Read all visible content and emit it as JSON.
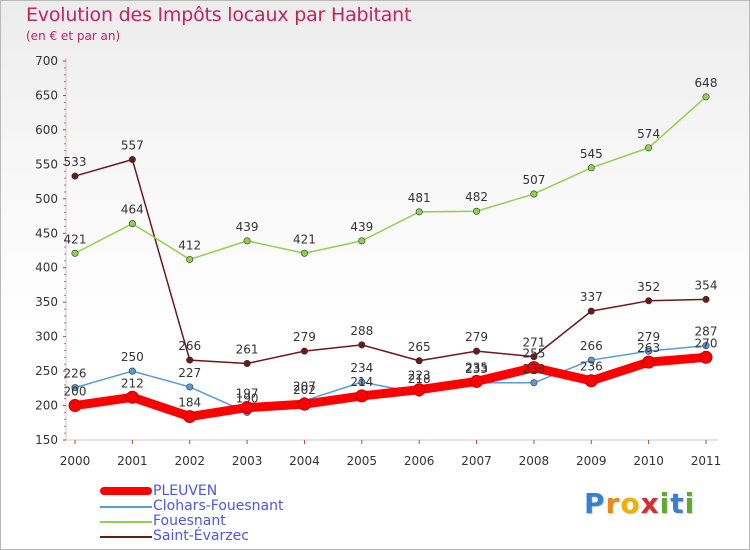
{
  "title": "Evolution des Impôts locaux par Habitant",
  "subtitle": "(en € et par an)",
  "brand": {
    "letters": [
      "P",
      "r",
      "o",
      "x",
      "i",
      "t",
      "i"
    ],
    "colors": [
      "#3b7fd0",
      "#e8891a",
      "#f0b000",
      "#d42f2f",
      "#5aab2e",
      "#3b7fd0",
      "#5aab2e"
    ]
  },
  "chart_data": {
    "type": "line",
    "title": "Evolution des Impôts locaux par Habitant",
    "subtitle": "(en € et par an)",
    "xlabel": "",
    "ylabel": "",
    "categories": [
      "2000",
      "2001",
      "2002",
      "2003",
      "2004",
      "2005",
      "2006",
      "2007",
      "2008",
      "2009",
      "2010",
      "2011"
    ],
    "yticks": [
      "150",
      "200",
      "250",
      "300",
      "350",
      "400",
      "450",
      "500",
      "550",
      "600",
      "650",
      "700"
    ],
    "ylim": [
      150,
      700
    ],
    "grid": false,
    "legend_position": "bottom-left",
    "series": [
      {
        "name": "PLEUVEN",
        "color": "#ff0000",
        "values": [
          200,
          212,
          184,
          197,
          202,
          214,
          223,
          235,
          255,
          236,
          263,
          270
        ],
        "labels": [
          "200",
          "212",
          "184",
          "197",
          "202",
          "214",
          "223",
          "235",
          "255",
          "236",
          "263",
          "270"
        ]
      },
      {
        "name": "Clohars-Fouesnant",
        "color": "#5b9bd5",
        "values": [
          226,
          250,
          227,
          190,
          207,
          234,
          218,
          233,
          233,
          266,
          279,
          287
        ],
        "labels": [
          "226",
          "250",
          "227",
          "190",
          "207",
          "234",
          "218",
          "233",
          "233",
          "266",
          "279",
          "287"
        ]
      },
      {
        "name": "Fouesnant",
        "color": "#8fd14f",
        "values": [
          421,
          464,
          412,
          439,
          421,
          439,
          481,
          482,
          507,
          545,
          574,
          648
        ],
        "labels": [
          "421",
          "464",
          "412",
          "439",
          "421",
          "439",
          "481",
          "482",
          "507",
          "545",
          "574",
          "648"
        ]
      },
      {
        "name": "Saint-Évarzec",
        "color": "#6b1a1a",
        "values": [
          533,
          557,
          266,
          261,
          279,
          288,
          265,
          279,
          271,
          337,
          352,
          354
        ],
        "labels": [
          "533",
          "557",
          "266",
          "261",
          "279",
          "288",
          "265",
          "279",
          "271",
          "337",
          "352",
          "354"
        ]
      }
    ]
  }
}
